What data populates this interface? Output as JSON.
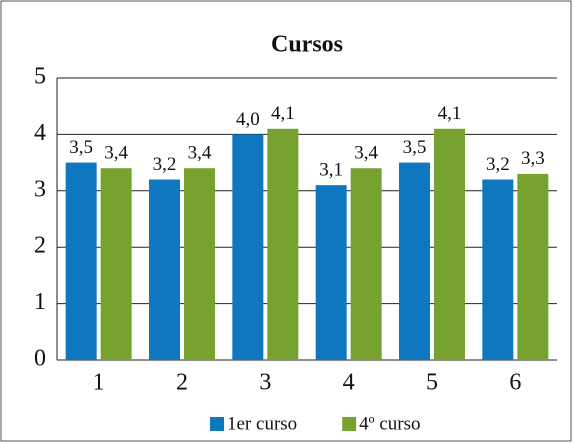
{
  "chart_data": {
    "type": "bar",
    "title": "Cursos",
    "categories": [
      "1",
      "2",
      "3",
      "4",
      "5",
      "6"
    ],
    "series": [
      {
        "name": "1er curso",
        "color": "#0e77c0",
        "values": [
          3.5,
          3.2,
          4.0,
          3.1,
          3.5,
          3.2
        ],
        "value_labels": [
          "3,5",
          "3,2",
          "4,0",
          "3,1",
          "3,5",
          "3,2"
        ]
      },
      {
        "name": "4º curso",
        "color": "#77a22f",
        "values": [
          3.4,
          3.4,
          4.1,
          3.4,
          4.1,
          3.3
        ],
        "value_labels": [
          "3,4",
          "3,4",
          "4,1",
          "3,4",
          "4,1",
          "3,3"
        ]
      }
    ],
    "ylim": [
      0,
      5
    ],
    "yticks": [
      0,
      1,
      2,
      3,
      4,
      5
    ],
    "grid": true,
    "legend": "bottom"
  }
}
